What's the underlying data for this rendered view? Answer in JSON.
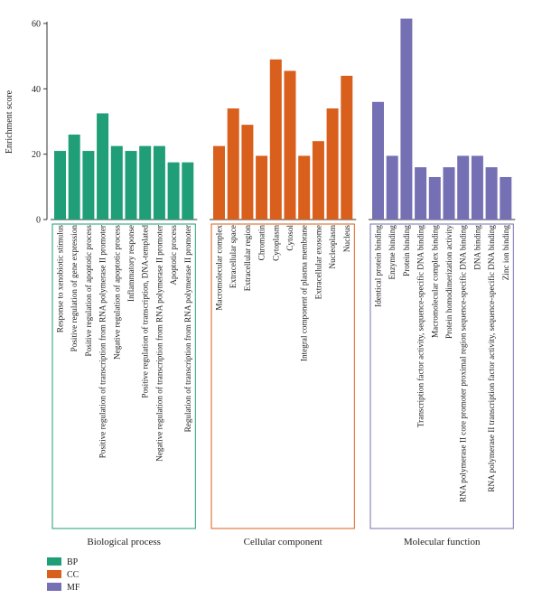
{
  "chart_data": {
    "type": "bar",
    "ylabel": "Enrichment score",
    "ylim": [
      0,
      60
    ],
    "yticks": [
      0,
      20,
      40,
      60
    ],
    "grid": false,
    "legend_position": "bottom-left",
    "colors": {
      "BP": "#1f9e77",
      "CC": "#d95f1d",
      "MF": "#7570b3"
    },
    "groups": [
      {
        "key": "BP",
        "name": "Biological process",
        "categories": [
          "Response to xenobiotic stimulus",
          "Positive regulation of gene expression",
          "Positive regulation of apoptotic process",
          "Positive regulation of transcription from RNA polymerase II promoter",
          "Negative regulation of apoptotic process",
          "Inflammatory response",
          "Positive regulation of transcription, DNA-templated",
          "Negative regulation of transcription from RNA polymerase II promoter",
          "Apoptotic process",
          "Regulation of transcription from RNA polymerase II promoter"
        ],
        "values": [
          21,
          26,
          21,
          32.5,
          22.5,
          21,
          22.5,
          22.5,
          17.5,
          17.5
        ]
      },
      {
        "key": "CC",
        "name": "Cellular component",
        "categories": [
          "Macromolecular complex",
          "Extracellular space",
          "Extracellular region",
          "Chromatin",
          "Cytoplasm",
          "Cytosol",
          "Integral component of plasma membrane",
          "Extracellular exosome",
          "Nucleoplasm",
          "Nucleus"
        ],
        "values": [
          22.5,
          34,
          29,
          19.5,
          49,
          45.5,
          19.5,
          24,
          34,
          44
        ]
      },
      {
        "key": "MF",
        "name": "Molecular function",
        "categories": [
          "Identical protein binding",
          "Enzyme binding",
          "Protein binding",
          "Transcription factor activity, sequence-specific DNA binding",
          "Macromolecular complex binding",
          "Protein homodimerization activity",
          "RNA polymerase II core promoter proximal region sequence-specific DNA binding",
          "DNA binding",
          "RNA polymerase II transcription factor activity, sequence-specific DNA binding",
          "Zinc ion binding"
        ],
        "values": [
          36,
          19.5,
          61.5,
          16,
          13,
          16,
          19.5,
          19.5,
          16,
          13
        ]
      }
    ],
    "legend": [
      {
        "key": "BP",
        "label": "BP"
      },
      {
        "key": "CC",
        "label": "CC"
      },
      {
        "key": "MF",
        "label": "MF"
      }
    ]
  }
}
